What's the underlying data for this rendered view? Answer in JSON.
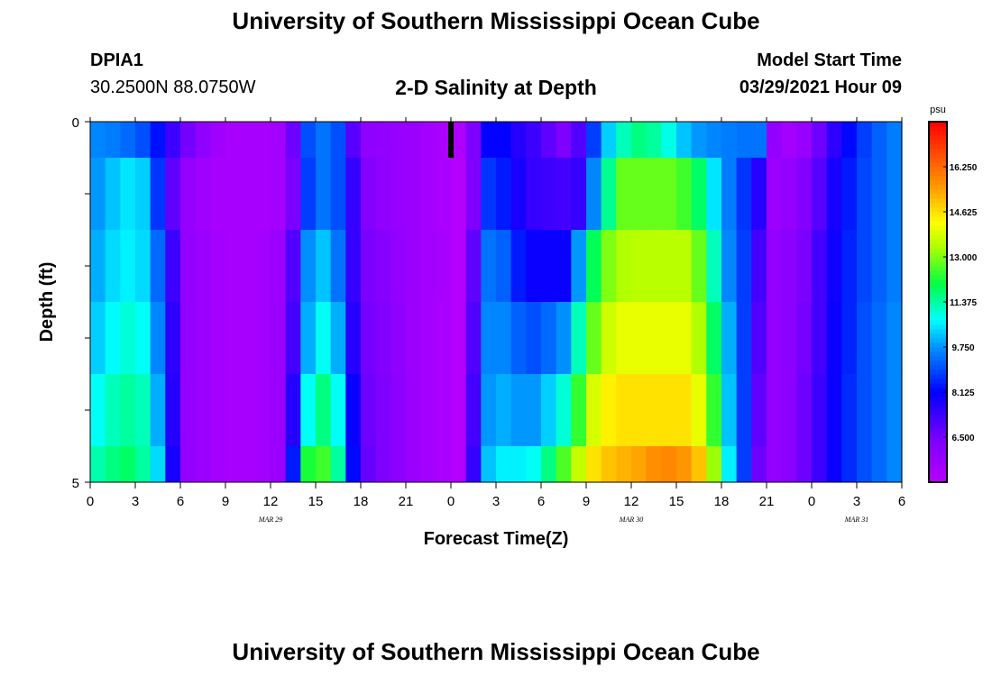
{
  "header": {
    "title": "University of Southern Mississippi Ocean Cube",
    "station_id": "DPIA1",
    "station_coords": "30.2500N  88.0750W",
    "model_start_label": "Model Start Time",
    "model_start_value": "03/29/2021 Hour 09"
  },
  "footer": {
    "title": "University of Southern Mississippi Ocean Cube"
  },
  "chart_data": {
    "type": "heatmap",
    "title": "2-D Salinity at Depth",
    "xlabel": "Forecast Time(Z)",
    "ylabel": "Depth (ft)",
    "ylim": [
      0,
      5
    ],
    "y_ticks": [
      "0",
      "5"
    ],
    "x_tick_labels": [
      "0",
      "3",
      "6",
      "9",
      "12",
      "15",
      "18",
      "21",
      "0",
      "3",
      "6",
      "9",
      "12",
      "15",
      "18",
      "21",
      "0",
      "3",
      "6"
    ],
    "date_labels": [
      {
        "label": "MAR  29",
        "at_tick": 4
      },
      {
        "label": "MAR  30",
        "at_tick": 12
      },
      {
        "label": "MAR  31",
        "at_tick": 17
      }
    ],
    "x_hours_range": [
      0,
      54
    ],
    "depth_layers_ft": [
      0,
      0.5,
      1.5,
      2.5,
      3.5,
      4.5
    ],
    "colorbar": {
      "unit": "psu",
      "min": 4.875,
      "max": 17.875,
      "tick_labels": [
        "16.250",
        "14.625",
        "13.000",
        "11.375",
        "9.750",
        "8.125",
        "6.500"
      ],
      "tick_values": [
        16.25,
        14.625,
        13.0,
        11.375,
        9.75,
        8.125,
        6.5
      ]
    },
    "current_time_marker_hour": 24,
    "series": [
      {
        "depth_row": 0,
        "values": [
          9.6,
          9.5,
          9.3,
          9.0,
          8.3,
          7.3,
          6.5,
          5.9,
          5.5,
          5.3,
          5.3,
          5.3,
          5.4,
          6.6,
          9.0,
          9.4,
          9.0,
          6.9,
          5.9,
          5.8,
          5.7,
          5.6,
          5.4,
          5.2,
          5.1,
          6.3,
          8.1,
          8.1,
          7.6,
          7.3,
          6.8,
          6.3,
          7.0,
          8.8,
          10.3,
          11.2,
          11.6,
          11.4,
          10.9,
          10.2,
          9.8,
          9.6,
          9.5,
          9.4,
          9.4,
          5.8,
          5.4,
          5.7,
          6.6,
          7.5,
          8.2,
          8.8,
          9.2,
          9.5
        ]
      },
      {
        "depth_row": 1,
        "values": [
          9.8,
          10.2,
          10.5,
          10.3,
          8.7,
          6.8,
          5.8,
          5.5,
          5.3,
          5.3,
          5.3,
          5.3,
          5.4,
          6.4,
          8.8,
          9.4,
          9.0,
          7.4,
          6.2,
          5.9,
          5.7,
          5.6,
          5.4,
          5.2,
          5.0,
          6.3,
          8.7,
          8.4,
          7.8,
          7.4,
          7.3,
          7.2,
          7.4,
          9.6,
          11.5,
          12.8,
          12.8,
          12.8,
          12.8,
          12.5,
          11.8,
          10.5,
          9.5,
          8.7,
          7.6,
          5.6,
          5.8,
          6.2,
          6.9,
          7.8,
          8.4,
          8.9,
          9.2,
          9.5
        ]
      },
      {
        "depth_row": 2,
        "values": [
          10.0,
          10.4,
          10.6,
          10.4,
          9.3,
          7.3,
          5.8,
          5.6,
          5.4,
          5.3,
          5.3,
          5.4,
          5.6,
          7.0,
          9.7,
          10.2,
          9.4,
          7.4,
          6.4,
          6.1,
          5.8,
          5.6,
          5.4,
          5.3,
          5.0,
          6.8,
          9.4,
          9.2,
          8.4,
          8.0,
          8.0,
          8.0,
          9.8,
          11.9,
          13.0,
          13.4,
          13.5,
          13.5,
          13.5,
          13.5,
          12.8,
          11.2,
          9.6,
          8.8,
          7.2,
          5.8,
          6.0,
          6.4,
          7.2,
          7.9,
          8.5,
          8.9,
          9.2,
          9.5
        ]
      },
      {
        "depth_row": 3,
        "values": [
          10.3,
          10.7,
          11.0,
          10.8,
          9.6,
          7.5,
          5.8,
          5.6,
          5.4,
          5.3,
          5.3,
          5.4,
          5.6,
          7.2,
          10.0,
          10.8,
          10.0,
          7.6,
          6.5,
          6.2,
          5.9,
          5.6,
          5.4,
          5.2,
          5.0,
          7.0,
          9.6,
          9.6,
          9.2,
          9.0,
          9.3,
          9.7,
          11.2,
          12.8,
          13.7,
          14.0,
          14.0,
          14.0,
          14.0,
          14.0,
          13.4,
          11.8,
          10.0,
          8.8,
          7.0,
          5.8,
          6.0,
          6.5,
          7.2,
          8.0,
          8.5,
          9.0,
          9.3,
          9.6
        ]
      },
      {
        "depth_row": 4,
        "values": [
          10.8,
          11.2,
          11.4,
          11.2,
          10.0,
          7.6,
          5.8,
          5.6,
          5.4,
          5.3,
          5.3,
          5.4,
          5.6,
          7.6,
          10.8,
          11.6,
          10.8,
          8.0,
          6.6,
          6.3,
          6.0,
          5.6,
          5.4,
          5.2,
          5.0,
          7.2,
          9.8,
          10.0,
          9.8,
          9.8,
          10.3,
          11.0,
          12.4,
          13.8,
          14.4,
          14.6,
          14.6,
          14.6,
          14.6,
          14.6,
          14.0,
          12.4,
          10.2,
          8.8,
          6.8,
          5.8,
          6.0,
          6.6,
          7.3,
          8.0,
          8.6,
          9.0,
          9.3,
          9.6
        ]
      },
      {
        "depth_row": 5,
        "values": [
          11.3,
          11.6,
          11.8,
          11.4,
          10.4,
          7.8,
          5.8,
          5.6,
          5.4,
          5.3,
          5.3,
          5.4,
          5.6,
          8.4,
          12.2,
          12.5,
          11.4,
          8.2,
          6.7,
          6.3,
          6.0,
          5.6,
          5.4,
          5.2,
          5.0,
          7.4,
          10.2,
          10.6,
          10.6,
          10.8,
          11.6,
          12.6,
          13.6,
          14.6,
          15.0,
          15.2,
          15.4,
          15.7,
          15.8,
          15.6,
          15.0,
          13.2,
          10.6,
          8.8,
          6.6,
          5.8,
          6.0,
          6.6,
          7.3,
          8.0,
          8.6,
          9.0,
          9.3,
          9.6
        ]
      }
    ]
  }
}
